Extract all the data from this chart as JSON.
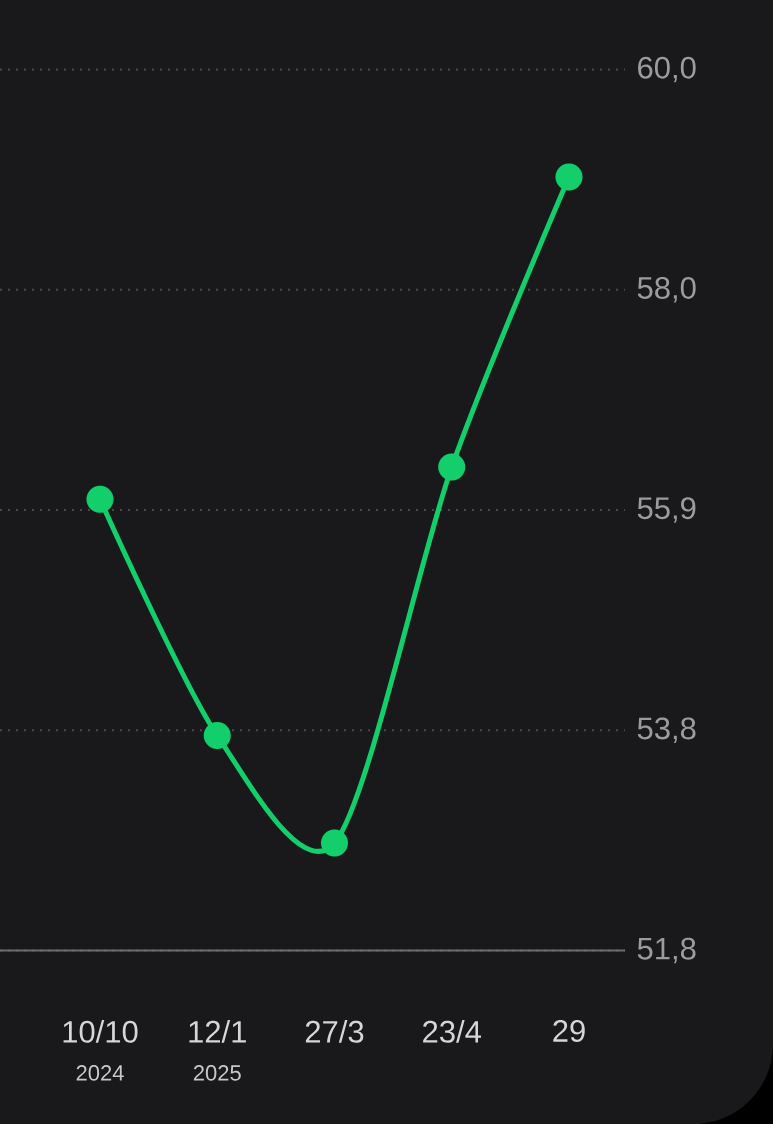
{
  "chart_data": {
    "type": "line",
    "categories": [
      "10/10\n2024",
      "12/1\n2025",
      "27/3",
      "23/4",
      "29"
    ],
    "series": [
      {
        "color": "#12cf6b",
        "values": [
          56.0,
          53.8,
          52.8,
          56.3,
          59.0
        ]
      }
    ],
    "ylim": [
      51.8,
      60.0
    ],
    "yticks": [
      {
        "value": 51.8,
        "label": "51,8"
      },
      {
        "value": 53.85,
        "label": "53,8"
      },
      {
        "value": 55.9,
        "label": "55,9"
      },
      {
        "value": 57.95,
        "label": "58,0"
      },
      {
        "value": 60.0,
        "label": "60,0"
      }
    ],
    "grid": "y",
    "marker": "circle",
    "line_style": "solid"
  }
}
